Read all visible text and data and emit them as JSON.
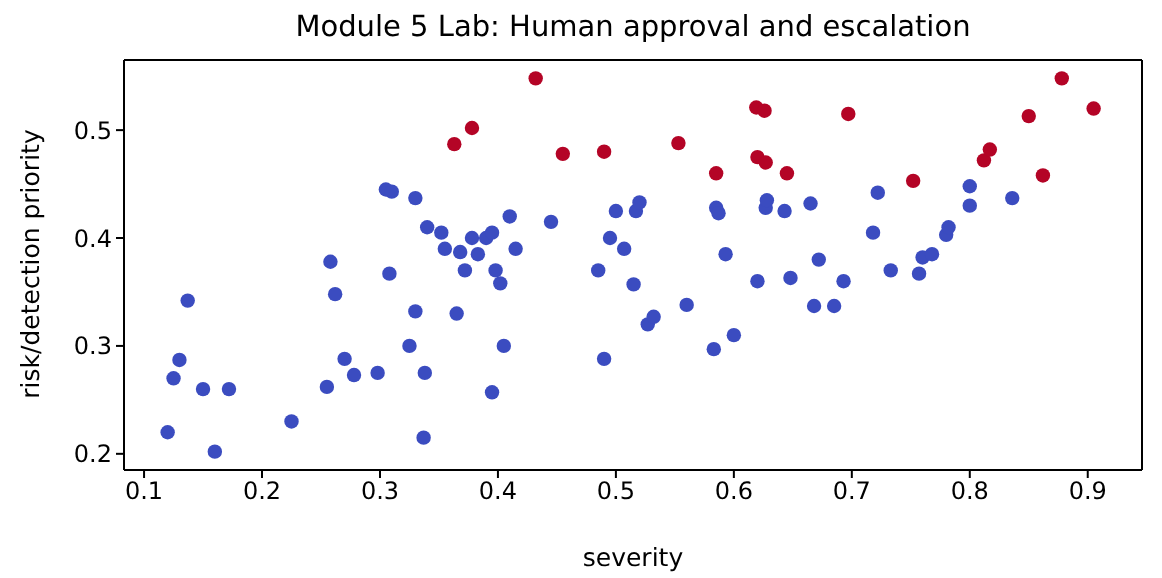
{
  "chart_data": {
    "type": "scatter",
    "title": "Module 5 Lab: Human approval and escalation",
    "xlabel": "severity",
    "ylabel": "risk/detection priority",
    "xlim": [
      0.083,
      0.946
    ],
    "ylim": [
      0.185,
      0.565
    ],
    "xticks": [
      0.1,
      0.2,
      0.3,
      0.4,
      0.5,
      0.6,
      0.7,
      0.8,
      0.9
    ],
    "yticks": [
      0.2,
      0.3,
      0.4,
      0.5
    ],
    "grid": false,
    "legend": false,
    "marker": "circle",
    "series": [
      {
        "color": "#3b4cc0",
        "x": [
          0.12,
          0.125,
          0.13,
          0.137,
          0.15,
          0.16,
          0.172,
          0.225,
          0.255,
          0.258,
          0.262,
          0.27,
          0.278,
          0.298,
          0.305,
          0.31,
          0.308,
          0.325,
          0.33,
          0.33,
          0.337,
          0.338,
          0.34,
          0.352,
          0.355,
          0.365,
          0.368,
          0.372,
          0.378,
          0.383,
          0.39,
          0.395,
          0.395,
          0.398,
          0.402,
          0.405,
          0.41,
          0.415,
          0.445,
          0.485,
          0.49,
          0.495,
          0.5,
          0.507,
          0.515,
          0.517,
          0.52,
          0.527,
          0.532,
          0.56,
          0.583,
          0.585,
          0.587,
          0.593,
          0.6,
          0.62,
          0.627,
          0.628,
          0.643,
          0.648,
          0.665,
          0.668,
          0.672,
          0.685,
          0.693,
          0.718,
          0.722,
          0.733,
          0.757,
          0.76,
          0.768,
          0.78,
          0.782,
          0.8,
          0.8,
          0.836
        ],
        "values": [
          0.22,
          0.27,
          0.287,
          0.342,
          0.26,
          0.202,
          0.26,
          0.23,
          0.262,
          0.378,
          0.348,
          0.288,
          0.273,
          0.275,
          0.445,
          0.443,
          0.367,
          0.3,
          0.332,
          0.437,
          0.215,
          0.275,
          0.41,
          0.405,
          0.39,
          0.33,
          0.387,
          0.37,
          0.4,
          0.385,
          0.4,
          0.257,
          0.405,
          0.37,
          0.358,
          0.3,
          0.42,
          0.39,
          0.415,
          0.37,
          0.288,
          0.4,
          0.425,
          0.39,
          0.357,
          0.425,
          0.433,
          0.32,
          0.327,
          0.338,
          0.297,
          0.428,
          0.423,
          0.385,
          0.31,
          0.36,
          0.428,
          0.435,
          0.425,
          0.363,
          0.432,
          0.337,
          0.38,
          0.337,
          0.36,
          0.405,
          0.442,
          0.37,
          0.367,
          0.382,
          0.385,
          0.403,
          0.41,
          0.448,
          0.43,
          0.437
        ]
      },
      {
        "color": "#b40426",
        "x": [
          0.363,
          0.378,
          0.432,
          0.455,
          0.49,
          0.553,
          0.585,
          0.62,
          0.619,
          0.626,
          0.627,
          0.645,
          0.697,
          0.752,
          0.812,
          0.817,
          0.85,
          0.862,
          0.878,
          0.905
        ],
        "values": [
          0.487,
          0.502,
          0.548,
          0.478,
          0.48,
          0.488,
          0.46,
          0.475,
          0.521,
          0.518,
          0.47,
          0.46,
          0.515,
          0.453,
          0.472,
          0.482,
          0.513,
          0.458,
          0.548,
          0.52
        ]
      }
    ]
  }
}
